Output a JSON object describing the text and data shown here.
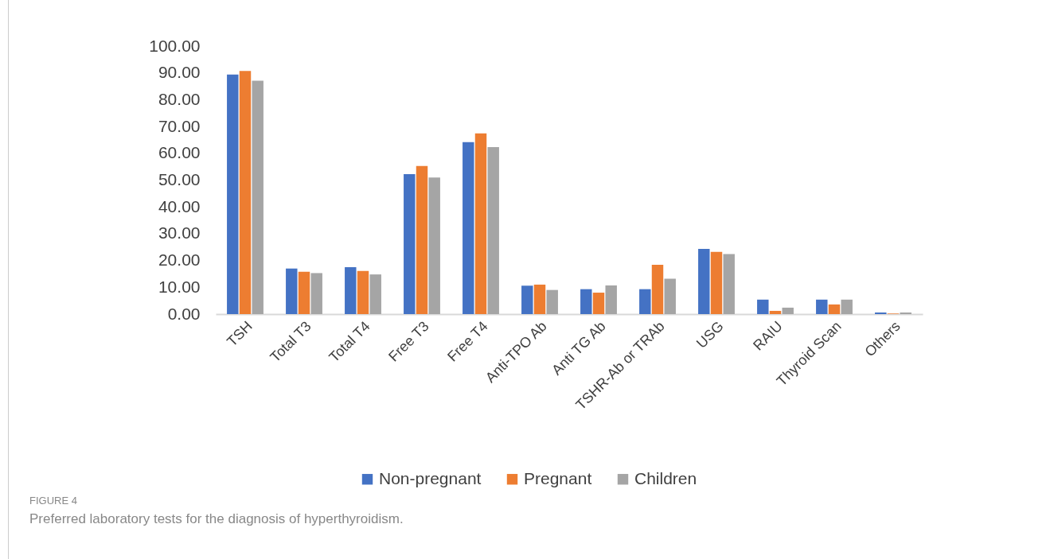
{
  "chart_data": {
    "type": "bar",
    "categories": [
      "TSH",
      "Total T3",
      "Total T4",
      "Free T3",
      "Free T4",
      "Anti-TPO Ab",
      "Anti TG Ab",
      "TSHR-Ab or TRAb",
      "USG",
      "RAIU",
      "Thyroid Scan",
      "Others"
    ],
    "series": [
      {
        "name": "Non-pregnant",
        "color": "#4472c4",
        "values": [
          89.4,
          17.0,
          17.5,
          52.2,
          64.2,
          10.6,
          9.3,
          9.3,
          24.3,
          5.4,
          5.4,
          0.6
        ]
      },
      {
        "name": "Pregnant",
        "color": "#ed7d31",
        "values": [
          90.7,
          15.8,
          16.1,
          55.3,
          67.4,
          11.0,
          8.0,
          18.4,
          23.2,
          1.2,
          3.6,
          0.2
        ]
      },
      {
        "name": "Children",
        "color": "#a5a5a5",
        "values": [
          87.1,
          15.3,
          14.8,
          51.0,
          62.3,
          9.0,
          10.7,
          13.2,
          22.4,
          2.4,
          5.4,
          0.6
        ]
      }
    ],
    "ylim": [
      0,
      100
    ],
    "yticks": [
      {
        "value": 0,
        "label": "0.00"
      },
      {
        "value": 10,
        "label": "10.00"
      },
      {
        "value": 20,
        "label": "20.00"
      },
      {
        "value": 30,
        "label": "30.00"
      },
      {
        "value": 40,
        "label": "40.00"
      },
      {
        "value": 50,
        "label": "50.00"
      },
      {
        "value": 60,
        "label": "60.00"
      },
      {
        "value": 70,
        "label": "70.00"
      },
      {
        "value": 80,
        "label": "80.00"
      },
      {
        "value": 90,
        "label": "90.00"
      },
      {
        "value": 100,
        "label": "100.00"
      }
    ],
    "grid": false,
    "legend": "bottom",
    "annotations": [
      "FIGURE 4",
      "Preferred laboratory tests for the diagnosis of hyperthyroidism."
    ]
  }
}
